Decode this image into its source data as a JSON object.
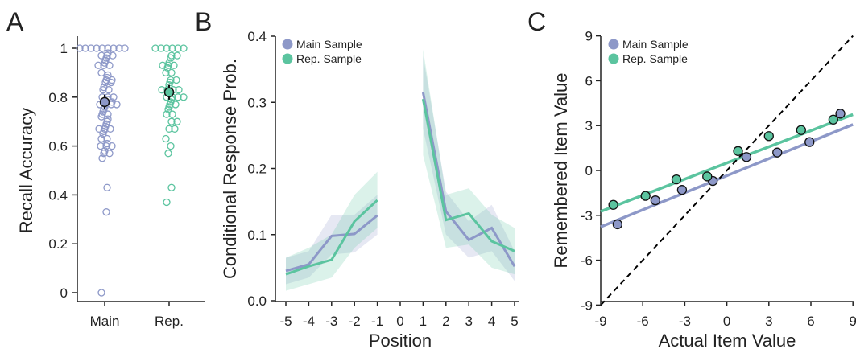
{
  "colors": {
    "main": "#8D98C8",
    "rep": "#5BC49F",
    "identity": "#000000",
    "mean": "#444444"
  },
  "panels": {
    "A": {
      "letter": "A",
      "ylabel": "Recall Accuracy",
      "yticks": [
        0,
        0.2,
        0.4,
        0.6,
        0.8,
        1
      ],
      "ytick_labels": [
        "0",
        "0.2",
        "0.4",
        "0.6",
        "0.8",
        "1"
      ],
      "categories": [
        "Main",
        "Rep."
      ]
    },
    "B": {
      "letter": "B",
      "ylabel": "Conditional Response Prob.",
      "xlabel": "Position",
      "yticks": [
        0,
        0.1,
        0.2,
        0.3,
        0.4
      ],
      "ytick_labels": [
        "0.0",
        "0.1",
        "0.2",
        "0.3",
        "0.4"
      ],
      "xticks": [
        -5,
        -4,
        -3,
        -2,
        -1,
        0,
        1,
        2,
        3,
        4,
        5
      ],
      "xtick_labels": [
        "-5",
        "-4",
        "-3",
        "-2",
        "-1",
        "0",
        "1",
        "2",
        "3",
        "4",
        "5"
      ],
      "legend": [
        "Main Sample",
        "Rep. Sample"
      ]
    },
    "C": {
      "letter": "C",
      "ylabel": "Remembered Item Value",
      "xlabel": "Actual Item Value",
      "ticks": [
        -9,
        -6,
        -3,
        0,
        3,
        6,
        9
      ],
      "tick_labels": [
        "-9",
        "-6",
        "-3",
        "0",
        "3",
        "6",
        "9"
      ],
      "legend": [
        "Main Sample",
        "Rep. Sample"
      ]
    }
  },
  "chart_data": [
    {
      "type": "scatter",
      "ylabel": "Recall Accuracy",
      "ylim": [
        0,
        1
      ],
      "categories": [
        "Main",
        "Rep."
      ],
      "series": [
        {
          "category": "Main",
          "values": [
            1,
            1,
            1,
            1,
            1,
            1,
            1,
            1,
            1,
            0.98,
            0.97,
            0.97,
            0.97,
            0.96,
            0.95,
            0.94,
            0.93,
            0.93,
            0.93,
            0.9,
            0.89,
            0.88,
            0.87,
            0.87,
            0.86,
            0.86,
            0.84,
            0.83,
            0.83,
            0.8,
            0.8,
            0.8,
            0.79,
            0.78,
            0.78,
            0.77,
            0.77,
            0.77,
            0.77,
            0.76,
            0.75,
            0.74,
            0.73,
            0.73,
            0.72,
            0.71,
            0.7,
            0.69,
            0.68,
            0.67,
            0.67,
            0.67,
            0.66,
            0.65,
            0.63,
            0.63,
            0.61,
            0.6,
            0.6,
            0.6,
            0.58,
            0.57,
            0.57,
            0.55,
            0.43,
            0.33,
            0
          ],
          "mean": 0.78,
          "err": 0.03
        },
        {
          "category": "Rep.",
          "values": [
            1,
            1,
            1,
            1,
            1,
            1,
            0.97,
            0.97,
            0.96,
            0.94,
            0.93,
            0.93,
            0.93,
            0.92,
            0.9,
            0.9,
            0.87,
            0.87,
            0.86,
            0.85,
            0.83,
            0.83,
            0.83,
            0.83,
            0.8,
            0.8,
            0.8,
            0.8,
            0.79,
            0.78,
            0.77,
            0.77,
            0.76,
            0.75,
            0.73,
            0.73,
            0.7,
            0.7,
            0.67,
            0.67,
            0.63,
            0.6,
            0.57,
            0.43,
            0.37
          ],
          "mean": 0.82,
          "err": 0.03
        }
      ]
    },
    {
      "type": "line",
      "xlabel": "Position",
      "ylabel": "Conditional Response Prob.",
      "ylim": [
        0,
        0.4
      ],
      "xlim": [
        -5,
        5
      ],
      "series": [
        {
          "name": "Main Sample",
          "segments": [
            {
              "x": [
                -5,
                -4,
                -3,
                -2,
                -1
              ],
              "y": [
                0.045,
                0.055,
                0.098,
                0.101,
                0.129
              ],
              "lo": [
                0.025,
                0.035,
                0.07,
                0.073,
                0.1
              ],
              "hi": [
                0.065,
                0.075,
                0.13,
                0.13,
                0.16
              ]
            },
            {
              "x": [
                1,
                2,
                3,
                4,
                5
              ],
              "y": [
                0.315,
                0.135,
                0.092,
                0.11,
                0.052
              ],
              "lo": [
                0.26,
                0.1,
                0.065,
                0.075,
                0.03
              ],
              "hi": [
                0.37,
                0.165,
                0.12,
                0.145,
                0.075
              ]
            }
          ]
        },
        {
          "name": "Rep. Sample",
          "segments": [
            {
              "x": [
                -5,
                -4,
                -3,
                -2,
                -1
              ],
              "y": [
                0.04,
                0.052,
                0.062,
                0.12,
                0.152
              ],
              "lo": [
                0.015,
                0.025,
                0.035,
                0.08,
                0.11
              ],
              "hi": [
                0.065,
                0.08,
                0.1,
                0.16,
                0.195
              ]
            },
            {
              "x": [
                1,
                2,
                3,
                4,
                5
              ],
              "y": [
                0.305,
                0.122,
                0.132,
                0.09,
                0.075
              ],
              "lo": [
                0.22,
                0.08,
                0.085,
                0.05,
                0.04
              ],
              "hi": [
                0.38,
                0.16,
                0.17,
                0.13,
                0.11
              ]
            }
          ]
        }
      ]
    },
    {
      "type": "scatter",
      "xlabel": "Actual Item Value",
      "ylabel": "Remembered Item Value",
      "xlim": [
        -9,
        9
      ],
      "ylim": [
        -9,
        9
      ],
      "series": [
        {
          "name": "Main Sample",
          "points": [
            [
              -7.8,
              -3.6
            ],
            [
              -5.1,
              -2.0
            ],
            [
              -3.2,
              -1.3
            ],
            [
              -1.0,
              -0.7
            ],
            [
              1.4,
              0.9
            ],
            [
              3.6,
              1.2
            ],
            [
              5.9,
              1.9
            ],
            [
              8.1,
              3.8
            ]
          ],
          "fit": {
            "slope": 0.38,
            "intercept": -0.35
          }
        },
        {
          "name": "Rep. Sample",
          "points": [
            [
              -8.1,
              -2.3
            ],
            [
              -5.8,
              -1.7
            ],
            [
              -3.6,
              -0.6
            ],
            [
              -1.4,
              -0.4
            ],
            [
              0.8,
              1.3
            ],
            [
              3.0,
              2.3
            ],
            [
              5.3,
              2.7
            ],
            [
              7.6,
              3.4
            ]
          ],
          "fit": {
            "slope": 0.36,
            "intercept": 0.5
          }
        }
      ],
      "identity_line": true
    }
  ]
}
